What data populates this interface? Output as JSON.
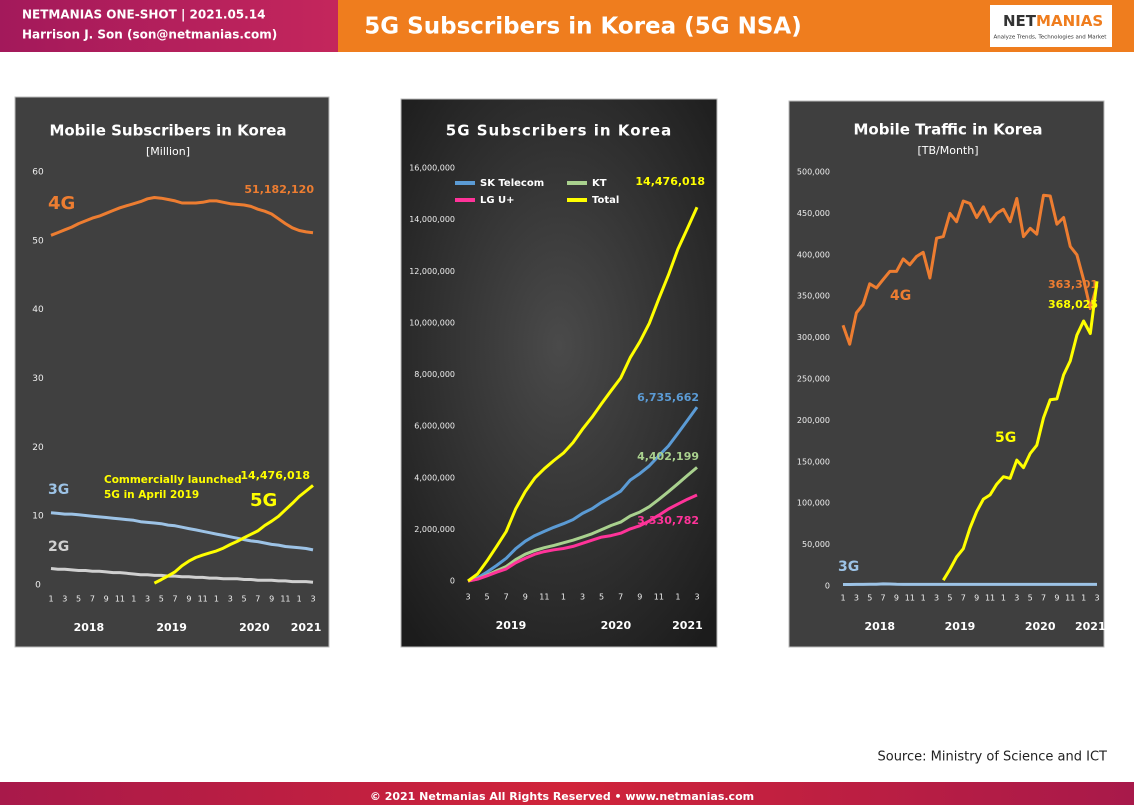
{
  "header": {
    "line1": "NETMANIAS ONE-SHOT  |  2021.05.14",
    "line2": "Harrison J. Son (son@netmanias.com)",
    "title": "5G Subscribers in Korea (5G NSA)",
    "logo_parts": [
      "NET",
      "MANIAS"
    ],
    "logo_tagline": "Analyze Trends, Technologies and Market"
  },
  "footer": {
    "source": "Source: Ministry of Science and ICT",
    "copyright": "© 2021 Netmanias All Rights Reserved • www.netmanias.com"
  },
  "chart_data": [
    {
      "type": "line",
      "title": "Mobile Subscribers in Korea",
      "subtitle": "[Million]",
      "categories": [
        "1",
        null,
        "3",
        null,
        "5",
        null,
        "7",
        null,
        "9",
        null,
        "11",
        null,
        "1",
        null,
        "3",
        null,
        "5",
        null,
        "7",
        null,
        "9",
        null,
        "11",
        null,
        "1",
        null,
        "3",
        null,
        "5",
        null,
        "7",
        null,
        "9",
        null,
        "11",
        null,
        "1",
        null,
        "3"
      ],
      "year_labels": [
        "2018",
        "2019",
        "2020",
        "2021"
      ],
      "ylim": [
        0,
        60
      ],
      "yticks": [
        0,
        10,
        20,
        30,
        40,
        50,
        60
      ],
      "grid": false,
      "annotation": [
        "Commercially launched",
        "5G in April 2019"
      ],
      "series": [
        {
          "name": "4G",
          "color": "#ed7d31",
          "end_label": "51,182,120",
          "values": [
            50.8,
            51.2,
            51.6,
            52.0,
            52.5,
            52.9,
            53.3,
            53.6,
            54.0,
            54.4,
            54.8,
            55.1,
            55.4,
            55.7,
            56.1,
            56.3,
            56.2,
            56.0,
            55.8,
            55.5,
            55.5,
            55.5,
            55.6,
            55.8,
            55.8,
            55.6,
            55.4,
            55.3,
            55.2,
            55.0,
            54.6,
            54.3,
            53.9,
            53.2,
            52.5,
            51.9,
            51.5,
            51.3,
            51.18212
          ]
        },
        {
          "name": "3G",
          "color": "#9dc3e6",
          "values": [
            10.5,
            10.4,
            10.3,
            10.3,
            10.2,
            10.1,
            10.0,
            9.9,
            9.8,
            9.7,
            9.6,
            9.5,
            9.4,
            9.2,
            9.1,
            9.0,
            8.9,
            8.7,
            8.6,
            8.4,
            8.2,
            8.0,
            7.8,
            7.6,
            7.4,
            7.2,
            7.0,
            6.8,
            6.6,
            6.4,
            6.3,
            6.1,
            5.9,
            5.8,
            5.6,
            5.5,
            5.4,
            5.3,
            5.1
          ]
        },
        {
          "name": "2G",
          "color": "#d0d0d0",
          "values": [
            2.4,
            2.3,
            2.3,
            2.2,
            2.1,
            2.1,
            2.0,
            2.0,
            1.9,
            1.8,
            1.8,
            1.7,
            1.6,
            1.5,
            1.5,
            1.4,
            1.4,
            1.3,
            1.3,
            1.2,
            1.2,
            1.1,
            1.1,
            1.0,
            1.0,
            0.9,
            0.9,
            0.9,
            0.8,
            0.8,
            0.7,
            0.7,
            0.7,
            0.6,
            0.6,
            0.5,
            0.5,
            0.5,
            0.4
          ]
        },
        {
          "name": "5G",
          "color": "#ffff00",
          "end_label": "14,476,018",
          "values": [
            null,
            null,
            null,
            null,
            null,
            null,
            null,
            null,
            null,
            null,
            null,
            null,
            null,
            null,
            null,
            0.27,
            0.78,
            1.34,
            1.92,
            2.8,
            3.47,
            3.99,
            4.35,
            4.67,
            4.95,
            5.36,
            5.88,
            6.34,
            6.87,
            7.37,
            7.86,
            8.65,
            9.27,
            9.98,
            10.93,
            11.85,
            12.86,
            13.66,
            14.476018
          ]
        }
      ]
    },
    {
      "type": "line",
      "title": "5G Subscribers  in  Korea",
      "legend": "upper left",
      "categories": [
        "3",
        null,
        "5",
        null,
        "7",
        null,
        "9",
        null,
        "11",
        null,
        "1",
        null,
        "3",
        null,
        "5",
        null,
        "7",
        null,
        "9",
        null,
        "11",
        null,
        "1",
        null,
        "3"
      ],
      "year_labels": [
        "2019",
        "2020",
        "2021"
      ],
      "ylim": [
        0,
        16000000
      ],
      "yticks": [
        0,
        {
          "value": 2000000,
          "label": "2,000,000"
        },
        {
          "value": 4000000,
          "label": "4,000,000"
        },
        {
          "value": 6000000,
          "label": "6,000,000"
        },
        {
          "value": 8000000,
          "label": "8,000,000"
        },
        {
          "value": 10000000,
          "label": "10,000,000"
        },
        {
          "value": 12000000,
          "label": "12,000,000"
        },
        {
          "value": 14000000,
          "label": "14,000,000"
        },
        {
          "value": 16000000,
          "label": "16,000,000"
        }
      ],
      "grid": false,
      "series": [
        {
          "name": "SK Telecom",
          "color": "#5b9bd5",
          "end_label": "6,735,662",
          "values": [
            0,
            120000,
            350000,
            600000,
            880000,
            1250000,
            1540000,
            1760000,
            1920000,
            2080000,
            2220000,
            2380000,
            2620000,
            2800000,
            3050000,
            3260000,
            3480000,
            3910000,
            4160000,
            4460000,
            4850000,
            5230000,
            5720000,
            6230000,
            6735662
          ]
        },
        {
          "name": "KT",
          "color": "#a9d18e",
          "end_label": "4,402,199",
          "values": [
            0,
            80000,
            230000,
            400000,
            560000,
            830000,
            1040000,
            1180000,
            1290000,
            1380000,
            1480000,
            1580000,
            1700000,
            1830000,
            1990000,
            2150000,
            2280000,
            2520000,
            2670000,
            2880000,
            3160000,
            3460000,
            3770000,
            4090000,
            4402199
          ]
        },
        {
          "name": "LG U+",
          "color": "#ff3399",
          "end_label": "3,330,782",
          "values": [
            0,
            70000,
            200000,
            340000,
            470000,
            710000,
            880000,
            1040000,
            1140000,
            1210000,
            1260000,
            1340000,
            1460000,
            1580000,
            1700000,
            1760000,
            1850000,
            2020000,
            2140000,
            2330000,
            2550000,
            2790000,
            2980000,
            3170000,
            3330782
          ]
        },
        {
          "name": "Total",
          "color": "#ffff00",
          "end_label": "14,476,018",
          "values": [
            0,
            270000,
            784000,
            1340000,
            1916000,
            2797000,
            3466000,
            3986000,
            4350000,
            4668000,
            4955000,
            5360000,
            5882000,
            6344000,
            6872000,
            7371000,
            7863000,
            8652000,
            9265000,
            9982000,
            10933000,
            11851000,
            12858000,
            13662000,
            14476018
          ]
        }
      ]
    },
    {
      "type": "line",
      "title": "Mobile Traffic in Korea",
      "subtitle": "[TB/Month]",
      "categories": [
        "1",
        null,
        "3",
        null,
        "5",
        null,
        "7",
        null,
        "9",
        null,
        "11",
        null,
        "1",
        null,
        "3",
        null,
        "5",
        null,
        "7",
        null,
        "9",
        null,
        "11",
        null,
        "1",
        null,
        "3",
        null,
        "5",
        null,
        "7",
        null,
        "9",
        null,
        "11",
        null,
        "1",
        null,
        "3"
      ],
      "year_labels": [
        "2018",
        "2019",
        "2020",
        "2021"
      ],
      "ylim": [
        0,
        500000
      ],
      "yticks": [
        0,
        {
          "value": 50000,
          "label": "50,000"
        },
        {
          "value": 100000,
          "label": "100,000"
        },
        {
          "value": 150000,
          "label": "150,000"
        },
        {
          "value": 200000,
          "label": "200,000"
        },
        {
          "value": 250000,
          "label": "250,000"
        },
        {
          "value": 300000,
          "label": "300,000"
        },
        {
          "value": 350000,
          "label": "350,000"
        },
        {
          "value": 400000,
          "label": "400,000"
        },
        {
          "value": 450000,
          "label": "450,000"
        },
        {
          "value": 500000,
          "label": "500,000"
        }
      ],
      "grid": false,
      "series": [
        {
          "name": "4G",
          "color": "#ed7d31",
          "end_label": "363,301",
          "values": [
            315000,
            292000,
            330000,
            340000,
            365000,
            360000,
            370000,
            380000,
            380000,
            395000,
            388000,
            398000,
            403000,
            372000,
            420000,
            422000,
            450000,
            440000,
            465000,
            462000,
            445000,
            458000,
            440000,
            450000,
            455000,
            440000,
            468000,
            422000,
            432000,
            425000,
            472000,
            471000,
            437000,
            445000,
            410000,
            400000,
            370000,
            335000,
            363301
          ]
        },
        {
          "name": "5G",
          "color": "#ffff00",
          "end_label": "368,025",
          "values": [
            null,
            null,
            null,
            null,
            null,
            null,
            null,
            null,
            null,
            null,
            null,
            null,
            null,
            null,
            null,
            7000,
            20000,
            35000,
            45000,
            70000,
            90000,
            105000,
            110000,
            123000,
            132000,
            130000,
            152000,
            143000,
            160000,
            170000,
            203000,
            225000,
            226000,
            255000,
            272000,
            303000,
            320000,
            305000,
            368025
          ]
        },
        {
          "name": "3G",
          "color": "#9dc3e6",
          "values": [
            1800,
            1800,
            1900,
            1900,
            2000,
            2100,
            2500,
            2400,
            2000,
            1900,
            1900,
            1900,
            1900,
            1900,
            1900,
            1900,
            1900,
            1900,
            1900,
            1900,
            1900,
            1900,
            1900,
            1900,
            1900,
            1900,
            1900,
            1900,
            1900,
            1900,
            1900,
            1900,
            1900,
            1900,
            1900,
            1900,
            1900,
            1900,
            1900
          ]
        }
      ]
    }
  ]
}
